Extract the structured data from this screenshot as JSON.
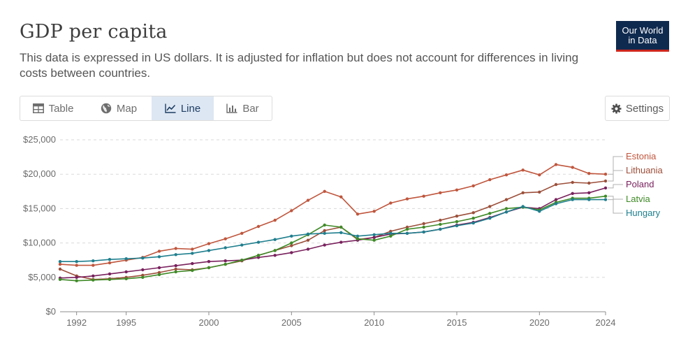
{
  "header": {
    "title": "GDP per capita",
    "subtitle": "This data is expressed in US dollars. It is adjusted for inflation but does not account for differences in living costs between countries.",
    "logo_line1": "Our World",
    "logo_line2": "in Data"
  },
  "tabs": [
    {
      "label": "Table",
      "icon": "table-icon",
      "active": false
    },
    {
      "label": "Map",
      "icon": "globe-icon",
      "active": false
    },
    {
      "label": "Line",
      "icon": "line-chart-icon",
      "active": true
    },
    {
      "label": "Bar",
      "icon": "bar-chart-icon",
      "active": false
    }
  ],
  "settings_label": "Settings",
  "chart_data": {
    "type": "line",
    "title": "GDP per capita",
    "x_ticks": [
      1992,
      1995,
      2000,
      2005,
      2010,
      2015,
      2020,
      2024
    ],
    "y_ticks": [
      0,
      5000,
      10000,
      15000,
      20000,
      25000
    ],
    "y_tick_labels": [
      "$0",
      "$5,000",
      "$10,000",
      "$15,000",
      "$20,000",
      "$25,000"
    ],
    "xlim": [
      1991,
      2024
    ],
    "ylim": [
      0,
      25000
    ],
    "grid": "horizontal-dashed",
    "legend": "right-end-labels",
    "x": [
      1991,
      1992,
      1993,
      1994,
      1995,
      1996,
      1997,
      1998,
      1999,
      2000,
      2001,
      2002,
      2003,
      2004,
      2005,
      2006,
      2007,
      2008,
      2009,
      2010,
      2011,
      2012,
      2013,
      2014,
      2015,
      2016,
      2017,
      2018,
      2019,
      2020,
      2021,
      2022,
      2023,
      2024
    ],
    "series": [
      {
        "name": "Estonia",
        "color": "#c0563d",
        "values": [
          6900,
          6750,
          6750,
          7100,
          7500,
          7900,
          8800,
          9200,
          9100,
          9900,
          10600,
          11400,
          12400,
          13300,
          14700,
          16200,
          17500,
          16700,
          14200,
          14600,
          15800,
          16400,
          16800,
          17300,
          17700,
          18300,
          19200,
          19900,
          20600,
          19900,
          21400,
          21000,
          20100,
          20000
        ]
      },
      {
        "name": "Lithuania",
        "color": "#9c4f3a",
        "values": [
          6200,
          5200,
          4700,
          4800,
          5000,
          5300,
          5700,
          6200,
          6100,
          6400,
          6900,
          7400,
          8200,
          8900,
          9600,
          10400,
          11800,
          12300,
          10500,
          10800,
          11700,
          12300,
          12800,
          13300,
          13900,
          14400,
          15300,
          16300,
          17300,
          17400,
          18500,
          18800,
          18700,
          19000
        ]
      },
      {
        "name": "Poland",
        "color": "#79215d",
        "values": [
          4900,
          5000,
          5200,
          5500,
          5800,
          6100,
          6400,
          6700,
          7000,
          7300,
          7400,
          7500,
          7900,
          8200,
          8600,
          9100,
          9700,
          10100,
          10400,
          10800,
          11300,
          11400,
          11600,
          12000,
          12600,
          13000,
          13700,
          14500,
          15200,
          15000,
          16300,
          17200,
          17300,
          18000
        ]
      },
      {
        "name": "Latvia",
        "color": "#3f8a27",
        "values": [
          4700,
          4500,
          4600,
          4700,
          4800,
          5000,
          5400,
          5800,
          6000,
          6400,
          6900,
          7500,
          8200,
          8900,
          10000,
          11200,
          12600,
          12300,
          10600,
          10400,
          11000,
          12000,
          12300,
          12700,
          13100,
          13600,
          14300,
          15000,
          15200,
          14800,
          15900,
          16500,
          16500,
          16800
        ]
      },
      {
        "name": "Hungary",
        "color": "#1f7f8e",
        "values": [
          7300,
          7300,
          7400,
          7600,
          7700,
          7800,
          8000,
          8300,
          8500,
          8900,
          9300,
          9700,
          10100,
          10500,
          11000,
          11300,
          11400,
          11500,
          11000,
          11200,
          11400,
          11400,
          11600,
          12000,
          12500,
          12900,
          13600,
          14500,
          15300,
          14600,
          15700,
          16300,
          16300,
          16300
        ]
      }
    ]
  }
}
